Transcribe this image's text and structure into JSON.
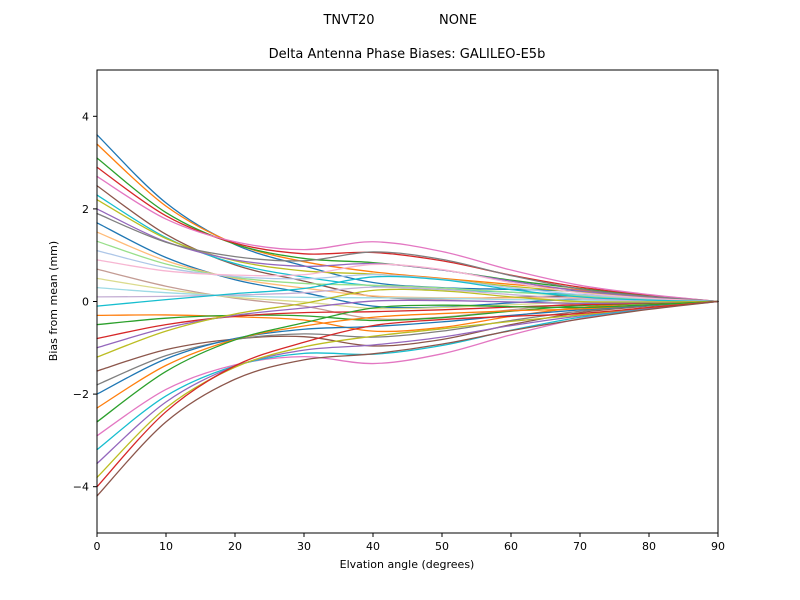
{
  "chart_data": {
    "type": "line",
    "suptitle_left": "TNVT20",
    "suptitle_right": "NONE",
    "title": "Delta Antenna Phase Biases: GALILEO-E5b",
    "xlabel": "Elvation angle (degrees)",
    "ylabel": "Bias from mean (mm)",
    "xlim": [
      0,
      90
    ],
    "ylim": [
      -5,
      5
    ],
    "xticks": [
      0,
      10,
      20,
      30,
      40,
      50,
      60,
      70,
      80,
      90
    ],
    "yticks": [
      -4,
      -2,
      0,
      2,
      4
    ],
    "grid": false,
    "legend": "none",
    "x": [
      0,
      10,
      20,
      30,
      40,
      50,
      60,
      70,
      80,
      90
    ],
    "series": [
      {
        "color": "#1f77b4",
        "y": [
          3.6,
          2.13,
          1.23,
          0.77,
          0.41,
          0.3,
          0.26,
          0.22,
          0.11,
          0
        ]
      },
      {
        "color": "#ff7f0e",
        "y": [
          3.4,
          2.06,
          1.25,
          0.86,
          0.64,
          0.5,
          0.37,
          0.25,
          0.12,
          0
        ]
      },
      {
        "color": "#2ca02c",
        "y": [
          3.1,
          1.92,
          1.24,
          0.93,
          0.84,
          0.68,
          0.46,
          0.28,
          0.12,
          0
        ]
      },
      {
        "color": "#d62728",
        "y": [
          2.9,
          1.85,
          1.26,
          1.03,
          1.06,
          0.88,
          0.57,
          0.31,
          0.14,
          0
        ]
      },
      {
        "color": "#e377c2",
        "y": [
          2.7,
          1.78,
          1.29,
          1.12,
          1.29,
          1.08,
          0.68,
          0.35,
          0.15,
          0
        ]
      },
      {
        "color": "#8c564b",
        "y": [
          2.5,
          1.45,
          0.79,
          0.44,
          0.11,
          0.06,
          0.09,
          0.12,
          0.07,
          0
        ]
      },
      {
        "color": "#17becf",
        "y": [
          2.3,
          1.38,
          0.82,
          0.53,
          0.34,
          0.26,
          0.2,
          0.15,
          0.07,
          0
        ]
      },
      {
        "color": "#bcbd22",
        "y": [
          2.2,
          1.36,
          0.88,
          0.66,
          0.59,
          0.48,
          0.33,
          0.2,
          0.09,
          0
        ]
      },
      {
        "color": "#9467bd",
        "y": [
          2.0,
          1.29,
          0.9,
          0.76,
          0.82,
          0.68,
          0.44,
          0.23,
          0.1,
          0
        ]
      },
      {
        "color": "#7f7f7f",
        "y": [
          1.9,
          1.28,
          0.97,
          0.88,
          1.07,
          0.91,
          0.56,
          0.27,
          0.11,
          0
        ]
      },
      {
        "color": "#1f77b4",
        "y": [
          1.7,
          0.95,
          0.47,
          0.19,
          -0.1,
          -0.12,
          -0.03,
          0.05,
          0.03,
          0
        ]
      },
      {
        "color": "#ffbb78",
        "y": [
          1.5,
          0.88,
          0.5,
          0.29,
          0.12,
          0.08,
          0.08,
          0.08,
          0.04,
          0
        ]
      },
      {
        "color": "#98df8a",
        "y": [
          1.3,
          0.81,
          0.52,
          0.39,
          0.35,
          0.29,
          0.2,
          0.12,
          0.05,
          0
        ]
      },
      {
        "color": "#aec7e8",
        "y": [
          1.1,
          0.73,
          0.54,
          0.49,
          0.58,
          0.48,
          0.3,
          0.15,
          0.06,
          0
        ]
      },
      {
        "color": "#f7b6d2",
        "y": [
          0.9,
          0.66,
          0.57,
          0.58,
          0.8,
          0.69,
          0.41,
          0.19,
          0.07,
          0
        ]
      },
      {
        "color": "#c49c94",
        "y": [
          0.7,
          0.33,
          0.07,
          -0.1,
          -0.37,
          -0.34,
          -0.18,
          -0.04,
          0.0,
          0
        ]
      },
      {
        "color": "#dbdb8d",
        "y": [
          0.5,
          0.26,
          0.09,
          -0.01,
          -0.15,
          -0.13,
          -0.07,
          -0.01,
          0.0,
          0
        ]
      },
      {
        "color": "#9edae5",
        "y": [
          0.3,
          0.19,
          0.12,
          0.09,
          0.08,
          0.07,
          0.04,
          0.03,
          0.01,
          0
        ]
      },
      {
        "color": "#c5b0d5",
        "y": [
          0.1,
          0.11,
          0.14,
          0.19,
          0.31,
          0.26,
          0.15,
          0.06,
          0.02,
          0
        ]
      },
      {
        "color": "#17becf",
        "y": [
          -0.1,
          0.04,
          0.17,
          0.28,
          0.53,
          0.47,
          0.26,
          0.1,
          0.03,
          0
        ]
      },
      {
        "color": "#ff7f0e",
        "y": [
          -0.3,
          -0.29,
          -0.33,
          -0.4,
          -0.64,
          -0.56,
          -0.32,
          -0.13,
          -0.04,
          0
        ]
      },
      {
        "color": "#2ca02c",
        "y": [
          -0.5,
          -0.36,
          -0.3,
          -0.31,
          -0.41,
          -0.35,
          -0.21,
          -0.09,
          -0.04,
          0
        ]
      },
      {
        "color": "#d62728",
        "y": [
          -0.8,
          -0.5,
          -0.32,
          -0.24,
          -0.22,
          -0.18,
          -0.12,
          -0.07,
          -0.03,
          0
        ]
      },
      {
        "color": "#9467bd",
        "y": [
          -1.0,
          -0.57,
          -0.3,
          -0.14,
          0.01,
          0.02,
          -0.01,
          -0.04,
          -0.02,
          0
        ]
      },
      {
        "color": "#bcbd22",
        "y": [
          -1.2,
          -0.64,
          -0.27,
          -0.04,
          0.24,
          0.23,
          0.1,
          0.0,
          -0.01,
          0
        ]
      },
      {
        "color": "#8c564b",
        "y": [
          -1.5,
          -1.04,
          -0.81,
          -0.76,
          -0.96,
          -0.82,
          -0.5,
          -0.24,
          -0.1,
          0
        ]
      },
      {
        "color": "#7f7f7f",
        "y": [
          -1.8,
          -1.17,
          -0.82,
          -0.7,
          -0.77,
          -0.64,
          -0.41,
          -0.21,
          -0.09,
          0
        ]
      },
      {
        "color": "#1f77b4",
        "y": [
          -2.0,
          -1.24,
          -0.8,
          -0.6,
          -0.54,
          -0.44,
          -0.3,
          -0.18,
          -0.08,
          0
        ]
      },
      {
        "color": "#ff7f0e",
        "y": [
          -2.3,
          -1.38,
          -0.82,
          -0.53,
          -0.34,
          -0.26,
          -0.2,
          -0.16,
          -0.07,
          0
        ]
      },
      {
        "color": "#2ca02c",
        "y": [
          -2.6,
          -1.51,
          -0.83,
          -0.46,
          -0.14,
          -0.08,
          -0.11,
          -0.13,
          -0.07,
          0
        ]
      },
      {
        "color": "#e377c2",
        "y": [
          -2.9,
          -1.9,
          -1.37,
          -1.19,
          -1.34,
          -1.13,
          -0.72,
          -0.37,
          -0.15,
          0
        ]
      },
      {
        "color": "#17becf",
        "y": [
          -3.2,
          -2.04,
          -1.39,
          -1.12,
          -1.14,
          -0.95,
          -0.62,
          -0.34,
          -0.15,
          0
        ]
      },
      {
        "color": "#9467bd",
        "y": [
          -3.5,
          -2.17,
          -1.4,
          -1.05,
          -0.94,
          -0.77,
          -0.52,
          -0.31,
          -0.14,
          0
        ]
      },
      {
        "color": "#bcbd22",
        "y": [
          -3.8,
          -2.3,
          -1.42,
          -0.98,
          -0.75,
          -0.59,
          -0.43,
          -0.29,
          -0.13,
          0
        ]
      },
      {
        "color": "#d62728",
        "y": [
          -4.0,
          -2.38,
          -1.39,
          -0.88,
          -0.52,
          -0.39,
          -0.32,
          -0.26,
          -0.13,
          0
        ]
      },
      {
        "color": "#8c564b",
        "y": [
          -4.2,
          -2.6,
          -1.68,
          -1.26,
          -1.13,
          -0.92,
          -0.63,
          -0.38,
          -0.17,
          0
        ]
      }
    ]
  }
}
